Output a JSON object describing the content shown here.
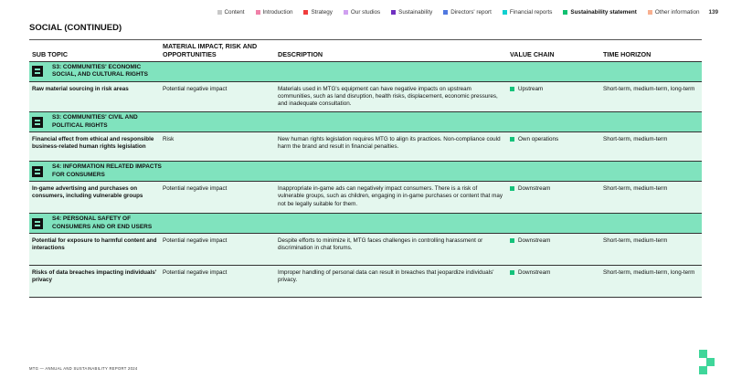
{
  "nav": {
    "items": [
      {
        "label": "Content",
        "color": "#c8c8c8"
      },
      {
        "label": "Introduction",
        "color": "#f080a8"
      },
      {
        "label": "Strategy",
        "color": "#f03c3c"
      },
      {
        "label": "Our studios",
        "color": "#d0a0f0"
      },
      {
        "label": "Sustainability",
        "color": "#7030c0"
      },
      {
        "label": "Directors' report",
        "color": "#5078e0"
      },
      {
        "label": "Financial reports",
        "color": "#10d0d0"
      },
      {
        "label": "Sustainability statement",
        "color": "#10c070",
        "active": true
      },
      {
        "label": "Other information",
        "color": "#f8b090"
      }
    ],
    "page": "139"
  },
  "title": "SOCIAL (CONTINUED)",
  "table": {
    "headers": [
      "SUB TOPIC",
      "MATERIAL IMPACT, RISK AND OPPORTUNITIES",
      "DESCRIPTION",
      "VALUE CHAIN",
      "TIME HORIZON"
    ],
    "groups": [
      {
        "title": "S3: COMMUNITIES' ECONOMIC SOCIAL, AND CULTURAL RIGHTS",
        "icon": "landscape-icon",
        "rows": [
          {
            "sub": "Raw material sourcing in risk areas",
            "impact": "Potential negative impact",
            "desc": "Materials used in MTG's equipment can have negative impacts on upstream communities, such as land disruption, health risks, displacement, economic pressures, and inadequate consultation.",
            "chain": "Upstream",
            "horizon": "Short-term, medium-term, long-term"
          }
        ]
      },
      {
        "title": "S3: COMMUNITIES' CIVIL AND POLITICAL RIGHTS",
        "icon": "grid-people-icon",
        "rows": [
          {
            "sub": "Financial effect from ethical and responsible business-related human rights legislation",
            "impact": "Risk",
            "desc": "New human rights legislation requires MTG to align its practices. Non-compliance could harm the brand and result in financial penalties.",
            "chain": "Own operations",
            "horizon": "Short-term, medium-term"
          }
        ]
      },
      {
        "title": "S4: INFORMATION RELATED IMPACTS FOR CONSUMERS",
        "icon": "consumer-info-icon",
        "rows": [
          {
            "sub": "In-game advertising and purchases on consumers, including vulnerable groups",
            "impact": "Potential negative impact",
            "desc": "Inappropriate in-game ads can negatively impact consumers. There is a risk of vulnerable groups, such as children, engaging in in-game purchases or content that may not be legally suitable for them.",
            "chain": "Downstream",
            "horizon": "Short-term, medium-term"
          }
        ]
      },
      {
        "title": "S4: PERSONAL SAFETY OF CONSUMERS AND OR END USERS",
        "icon": "consumer-safety-icon",
        "rows": [
          {
            "sub": "Potential for exposure to harmful content and interactions",
            "impact": "Potential negative impact",
            "desc": "Despite efforts to minimize it, MTG faces challenges in controlling harassment or discrimination in chat forums.",
            "chain": "Downstream",
            "horizon": "Short-term, medium-term"
          },
          {
            "sub": "Risks of data breaches impacting individuals' privacy",
            "impact": "Potential negative impact",
            "desc": "Improper handling of personal data can result in breaches that jeopardize individuals' privacy.",
            "chain": "Downstream",
            "horizon": "Short-term, medium-term, long-term"
          }
        ]
      }
    ]
  },
  "footer": "MTG — ANNUAL AND SUSTAINABILITY REPORT 2024",
  "colors": {
    "category_bg": "#80e3be",
    "row_bg": "#e4f7ee",
    "accent": "#13c27a"
  }
}
